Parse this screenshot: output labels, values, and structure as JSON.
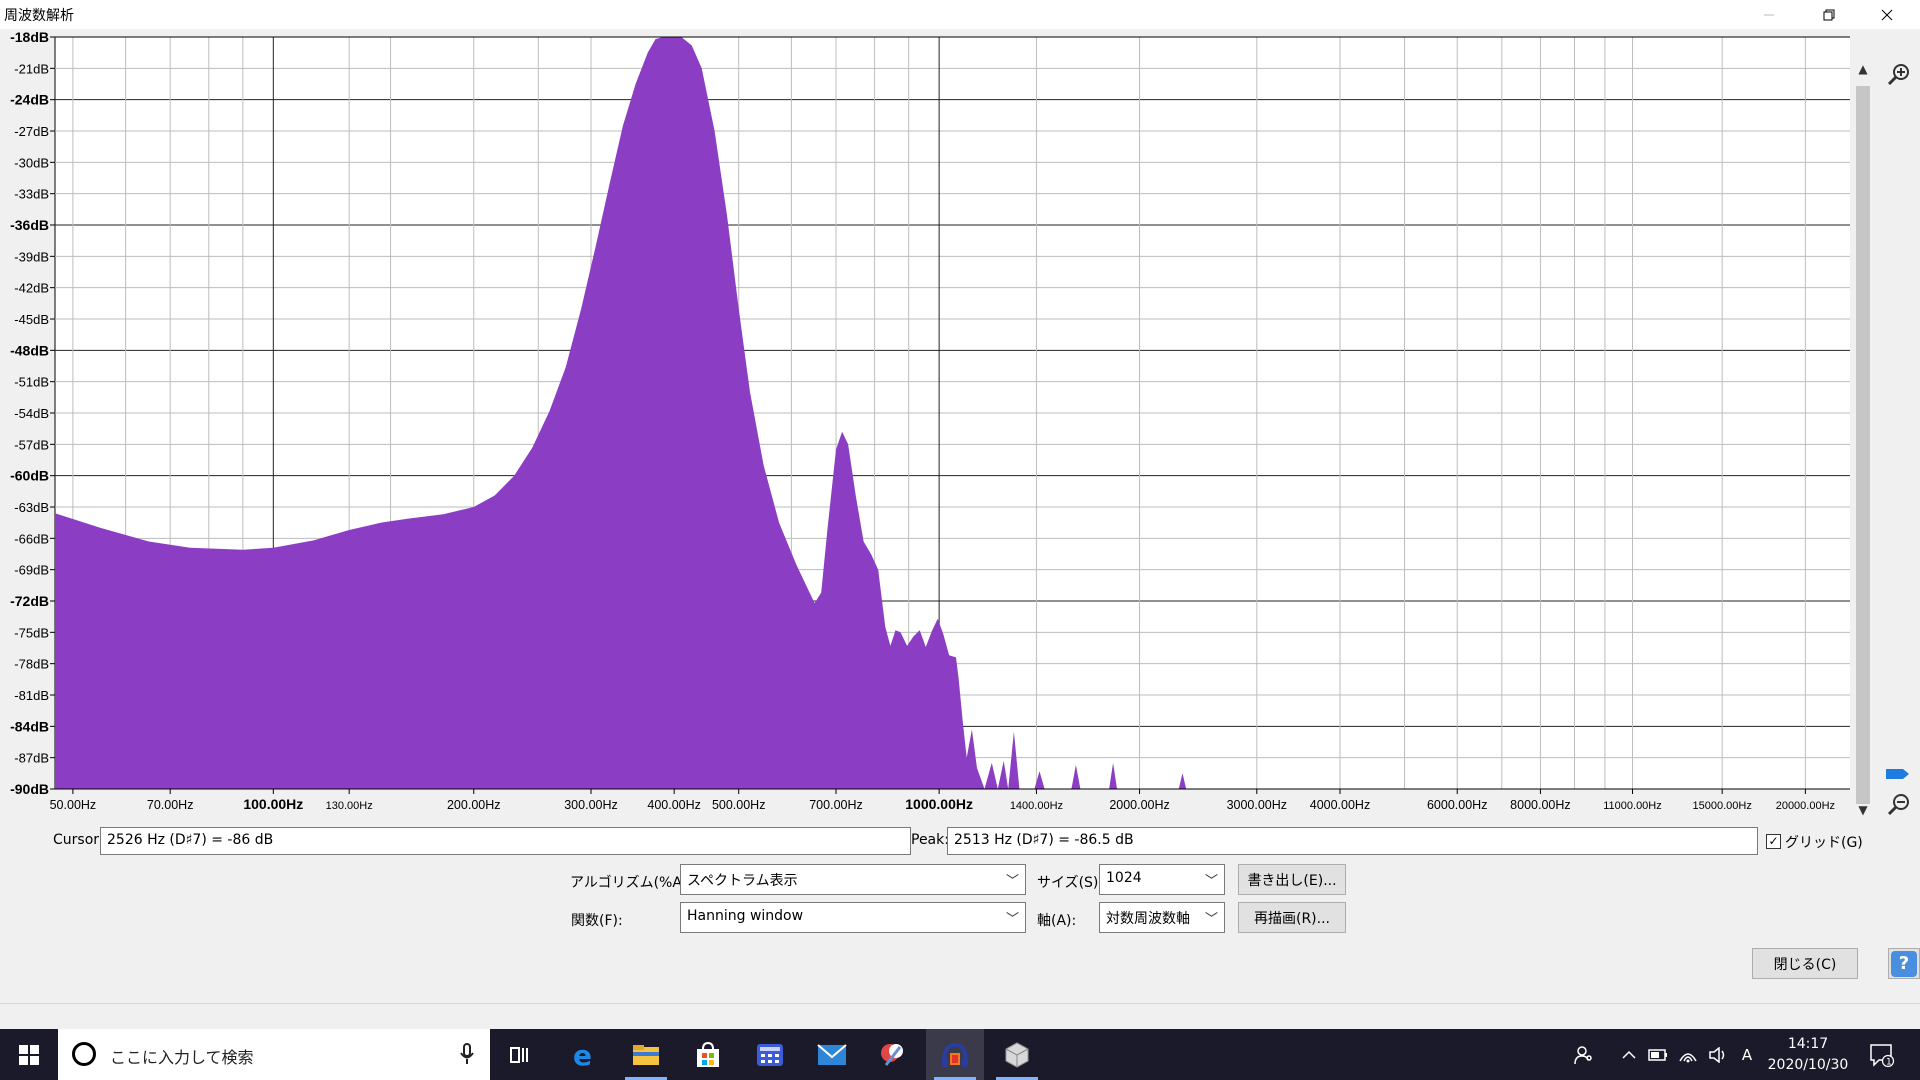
{
  "window": {
    "title": "周波数解析"
  },
  "chart_data": {
    "type": "area",
    "title": "",
    "xlabel": "",
    "ylabel": "",
    "x_scale": "log",
    "xlim": [
      47,
      23500
    ],
    "ylim": [
      -90,
      -18
    ],
    "grid": true,
    "fill_color": "#8B3DC3",
    "y_ticks": [
      {
        "value": -18,
        "label": "-18dB",
        "major": true
      },
      {
        "value": -21,
        "label": "-21dB",
        "major": false
      },
      {
        "value": -24,
        "label": "-24dB",
        "major": true
      },
      {
        "value": -27,
        "label": "-27dB",
        "major": false
      },
      {
        "value": -30,
        "label": "-30dB",
        "major": false
      },
      {
        "value": -33,
        "label": "-33dB",
        "major": false
      },
      {
        "value": -36,
        "label": "-36dB",
        "major": true
      },
      {
        "value": -39,
        "label": "-39dB",
        "major": false
      },
      {
        "value": -42,
        "label": "-42dB",
        "major": false
      },
      {
        "value": -45,
        "label": "-45dB",
        "major": false
      },
      {
        "value": -48,
        "label": "-48dB",
        "major": true
      },
      {
        "value": -51,
        "label": "-51dB",
        "major": false
      },
      {
        "value": -54,
        "label": "-54dB",
        "major": false
      },
      {
        "value": -57,
        "label": "-57dB",
        "major": false
      },
      {
        "value": -60,
        "label": "-60dB",
        "major": true
      },
      {
        "value": -63,
        "label": "-63dB",
        "major": false
      },
      {
        "value": -66,
        "label": "-66dB",
        "major": false
      },
      {
        "value": -69,
        "label": "-69dB",
        "major": false
      },
      {
        "value": -72,
        "label": "-72dB",
        "major": true
      },
      {
        "value": -75,
        "label": "-75dB",
        "major": false
      },
      {
        "value": -78,
        "label": "-78dB",
        "major": false
      },
      {
        "value": -81,
        "label": "-81dB",
        "major": false
      },
      {
        "value": -84,
        "label": "-84dB",
        "major": true
      },
      {
        "value": -87,
        "label": "-87dB",
        "major": false
      },
      {
        "value": -90,
        "label": "-90dB",
        "major": true
      }
    ],
    "x_ticks": [
      {
        "value": 50,
        "label": "50.00Hz",
        "major": false
      },
      {
        "value": 70,
        "label": "70.00Hz",
        "major": false
      },
      {
        "value": 100,
        "label": "100.00Hz",
        "major": true
      },
      {
        "value": 130,
        "label": "130.00Hz",
        "major": false
      },
      {
        "value": 200,
        "label": "200.00Hz",
        "major": false
      },
      {
        "value": 300,
        "label": "300.00Hz",
        "major": false
      },
      {
        "value": 400,
        "label": "400.00Hz",
        "major": false
      },
      {
        "value": 500,
        "label": "500.00Hz",
        "major": false
      },
      {
        "value": 700,
        "label": "700.00Hz",
        "major": false
      },
      {
        "value": 1000,
        "label": "1000.00Hz",
        "major": true
      },
      {
        "value": 1400,
        "label": "1400.00Hz",
        "major": false
      },
      {
        "value": 2000,
        "label": "2000.00Hz",
        "major": false
      },
      {
        "value": 3000,
        "label": "3000.00Hz",
        "major": false
      },
      {
        "value": 4000,
        "label": "4000.00Hz",
        "major": false
      },
      {
        "value": 6000,
        "label": "6000.00Hz",
        "major": false
      },
      {
        "value": 8000,
        "label": "8000.00Hz",
        "major": false
      },
      {
        "value": 11000,
        "label": "11000.00Hz",
        "major": false
      },
      {
        "value": 15000,
        "label": "15000.00Hz",
        "major": false
      },
      {
        "value": 20000,
        "label": "20000.00Hz",
        "major": false
      }
    ],
    "x_minor_grid": [
      60,
      80,
      90,
      150,
      250,
      600,
      800,
      900,
      5000,
      7000,
      9000,
      10000
    ],
    "spectrum": [
      [
        47,
        -63.6
      ],
      [
        55,
        -65
      ],
      [
        65,
        -66.3
      ],
      [
        75,
        -66.9
      ],
      [
        90,
        -67.1
      ],
      [
        100,
        -66.9
      ],
      [
        115,
        -66.2
      ],
      [
        130,
        -65.2
      ],
      [
        145,
        -64.5
      ],
      [
        160,
        -64.1
      ],
      [
        180,
        -63.7
      ],
      [
        200,
        -63
      ],
      [
        215,
        -61.9
      ],
      [
        230,
        -60
      ],
      [
        245,
        -57.3
      ],
      [
        260,
        -53.8
      ],
      [
        275,
        -49.6
      ],
      [
        290,
        -44
      ],
      [
        305,
        -38
      ],
      [
        320,
        -32
      ],
      [
        335,
        -26.5
      ],
      [
        350,
        -22.5
      ],
      [
        365,
        -19.5
      ],
      [
        375,
        -18.2
      ],
      [
        385,
        -18
      ],
      [
        410,
        -18
      ],
      [
        425,
        -18.8
      ],
      [
        440,
        -21
      ],
      [
        460,
        -27
      ],
      [
        480,
        -35
      ],
      [
        500,
        -44
      ],
      [
        520,
        -52
      ],
      [
        545,
        -59
      ],
      [
        575,
        -64.5
      ],
      [
        610,
        -68.5
      ],
      [
        650,
        -72.2
      ],
      [
        665,
        -71.2
      ],
      [
        680,
        -65
      ],
      [
        700,
        -57.5
      ],
      [
        715,
        -55.8
      ],
      [
        730,
        -57
      ],
      [
        750,
        -62
      ],
      [
        770,
        -66.3
      ],
      [
        790,
        -67.5
      ],
      [
        810,
        -69
      ],
      [
        830,
        -74.5
      ],
      [
        845,
        -76.3
      ],
      [
        860,
        -74.8
      ],
      [
        875,
        -75
      ],
      [
        895,
        -76.3
      ],
      [
        915,
        -75.4
      ],
      [
        935,
        -74.8
      ],
      [
        955,
        -76.4
      ],
      [
        975,
        -74.9
      ],
      [
        995,
        -73.7
      ],
      [
        1015,
        -75.2
      ],
      [
        1035,
        -77.2
      ],
      [
        1060,
        -77.4
      ],
      [
        1070,
        -79.5
      ],
      [
        1085,
        -83.5
      ],
      [
        1100,
        -87
      ],
      [
        1120,
        -84.3
      ],
      [
        1140,
        -88
      ],
      [
        1170,
        -90
      ],
      [
        1200,
        -87.5
      ],
      [
        1225,
        -90
      ],
      [
        1250,
        -87.3
      ],
      [
        1270,
        -90
      ],
      [
        1295,
        -84.5
      ],
      [
        1320,
        -90
      ],
      [
        1390,
        -90
      ],
      [
        1415,
        -88.3
      ],
      [
        1440,
        -90
      ],
      [
        1580,
        -90
      ],
      [
        1605,
        -87.7
      ],
      [
        1630,
        -90
      ],
      [
        1800,
        -90
      ],
      [
        1825,
        -87.5
      ],
      [
        1850,
        -90
      ],
      [
        2290,
        -90
      ],
      [
        2320,
        -88.5
      ],
      [
        2350,
        -90
      ],
      [
        23500,
        -90
      ]
    ]
  },
  "readouts": {
    "cursor_label": "Cursor:",
    "cursor_value": "2526 Hz (D♯7) = -86 dB",
    "peak_label": "Peak:",
    "peak_value": "2513 Hz (D♯7) = -86.5 dB",
    "grid_label": "グリッド(G)",
    "grid_checked": true
  },
  "controls": {
    "algorithm_label": "アルゴリズム(%A):",
    "algorithm_value": "スペクトラム表示",
    "function_label": "関数(F):",
    "function_value": "Hanning window",
    "size_label": "サイズ(S):",
    "size_value": "1024",
    "axis_label": "軸(A):",
    "axis_value": "対数周波数軸",
    "export_button": "書き出し(E)...",
    "replot_button": "再描画(R)...",
    "close_button": "閉じる(C)",
    "help_glyph": "?"
  },
  "taskbar": {
    "search_placeholder": "ここに入力して検索",
    "ime_indicator": "A",
    "time": "14:17",
    "date": "2020/10/30",
    "notification_count": "1",
    "apps": [
      "task-view-icon",
      "edge-icon",
      "file-explorer-icon",
      "store-icon",
      "calculator-icon",
      "mail-icon",
      "snipping-tool-icon",
      "audacity-icon",
      "3d-viewer-icon"
    ]
  }
}
